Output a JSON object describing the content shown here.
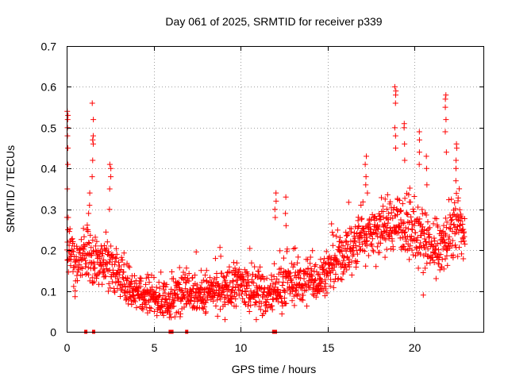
{
  "chart_data": {
    "type": "scatter",
    "title": "Day 061 of 2025, SRMTID for receiver p339",
    "xlabel": "GPS time / hours",
    "ylabel": "SRMTID / TECUs",
    "xlim": [
      0,
      24
    ],
    "ylim": [
      0,
      0.7
    ],
    "xticks": [
      0,
      5,
      10,
      15,
      20
    ],
    "xtick_labels": [
      "0",
      "5",
      "10",
      "15",
      "20"
    ],
    "yticks": [
      0,
      0.1,
      0.2,
      0.3,
      0.4,
      0.5,
      0.6,
      0.7
    ],
    "ytick_labels": [
      "0",
      "0.1",
      "0.2",
      "0.3",
      "0.4",
      "0.5",
      "0.6",
      "0.7"
    ],
    "grid": true,
    "marker": "+",
    "color": "#ff0000",
    "trend": {
      "x": [
        0,
        0.1,
        0.5,
        1.0,
        1.5,
        2.0,
        2.5,
        3.0,
        3.5,
        4.0,
        4.5,
        5.0,
        5.5,
        6.0,
        6.5,
        7.0,
        7.5,
        8.0,
        8.5,
        9.0,
        9.5,
        10.0,
        10.5,
        11.0,
        11.5,
        12.0,
        12.5,
        13.0,
        13.5,
        14.0,
        14.5,
        15.0,
        15.5,
        16.0,
        16.5,
        17.0,
        17.5,
        18.0,
        18.5,
        19.0,
        19.5,
        20.0,
        20.5,
        21.0,
        21.5,
        22.0,
        22.5,
        22.9
      ],
      "y": [
        0.2,
        0.22,
        0.16,
        0.2,
        0.17,
        0.17,
        0.17,
        0.14,
        0.12,
        0.1,
        0.1,
        0.09,
        0.08,
        0.07,
        0.1,
        0.12,
        0.09,
        0.09,
        0.1,
        0.1,
        0.11,
        0.12,
        0.1,
        0.11,
        0.08,
        0.1,
        0.12,
        0.12,
        0.12,
        0.13,
        0.13,
        0.15,
        0.17,
        0.19,
        0.21,
        0.24,
        0.25,
        0.25,
        0.26,
        0.27,
        0.26,
        0.24,
        0.22,
        0.2,
        0.2,
        0.24,
        0.26,
        0.24
      ],
      "spread": 0.045,
      "points_per_hour": 72
    },
    "spikes": [
      {
        "x": 0.05,
        "values": [
          0.54,
          0.53,
          0.52,
          0.5,
          0.48,
          0.45,
          0.41,
          0.35,
          0.28
        ]
      },
      {
        "x": 1.5,
        "values": [
          0.56,
          0.52,
          0.48,
          0.47,
          0.46,
          0.42,
          0.38
        ]
      },
      {
        "x": 1.3,
        "values": [
          0.34,
          0.31,
          0.29
        ]
      },
      {
        "x": 2.5,
        "values": [
          0.41,
          0.4,
          0.38,
          0.35,
          0.3
        ]
      },
      {
        "x": 12.0,
        "values": [
          0.34,
          0.32,
          0.3,
          0.28
        ]
      },
      {
        "x": 12.6,
        "values": [
          0.33,
          0.29,
          0.26
        ]
      },
      {
        "x": 17.2,
        "values": [
          0.43,
          0.41,
          0.38,
          0.36
        ]
      },
      {
        "x": 18.9,
        "values": [
          0.6,
          0.59,
          0.58,
          0.56,
          0.5,
          0.48,
          0.45
        ]
      },
      {
        "x": 19.4,
        "values": [
          0.51,
          0.5,
          0.46,
          0.42
        ]
      },
      {
        "x": 20.3,
        "values": [
          0.49,
          0.47,
          0.44,
          0.41
        ]
      },
      {
        "x": 20.7,
        "values": [
          0.43,
          0.4,
          0.36
        ]
      },
      {
        "x": 21.8,
        "values": [
          0.58,
          0.57,
          0.55,
          0.52,
          0.49,
          0.44
        ]
      },
      {
        "x": 22.4,
        "values": [
          0.46,
          0.45,
          0.42,
          0.4,
          0.37
        ]
      }
    ],
    "low_outliers": [
      {
        "x": 9.1,
        "y": 0.03
      },
      {
        "x": 10.9,
        "y": 0.03
      },
      {
        "x": 6.0,
        "y": 0.035
      },
      {
        "x": 20.5,
        "y": 0.09
      }
    ],
    "zero_markers": [
      1.1,
      1.55,
      5.95,
      6.05,
      6.9,
      11.9,
      12.0
    ]
  }
}
